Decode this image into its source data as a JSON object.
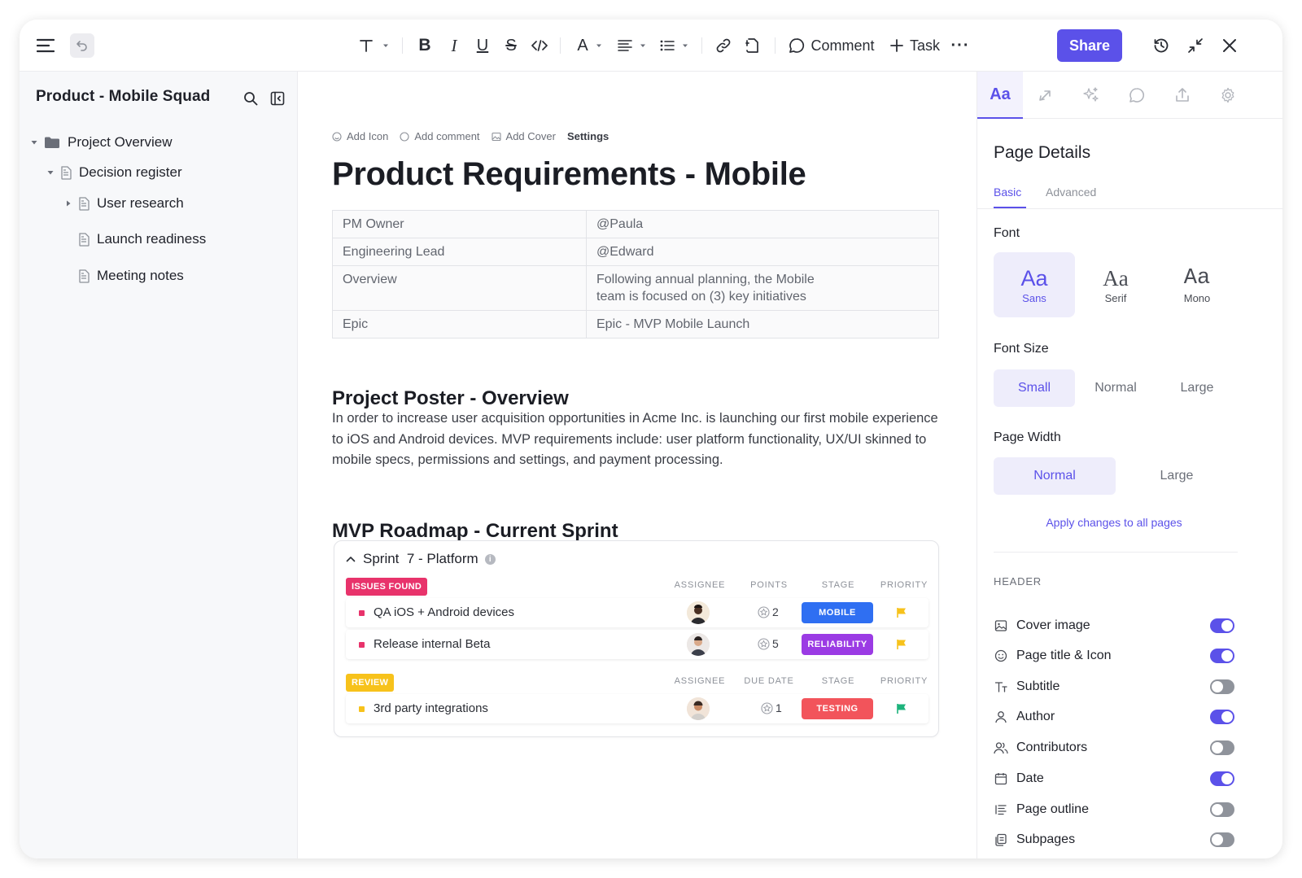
{
  "toolbar": {
    "comment_label": "Comment",
    "task_label": "Task",
    "share_label": "Share"
  },
  "sidebar": {
    "title": "Product - Mobile Squad",
    "tree": [
      {
        "label": "Project Overview",
        "level": 0,
        "expanded": true,
        "icon": "folder-icon"
      },
      {
        "label": "Decision register",
        "level": 1,
        "expanded": true,
        "icon": "doc-icon"
      },
      {
        "label": "User research",
        "level": 2,
        "expanded": false,
        "icon": "doc-icon"
      },
      {
        "label": "Launch readiness",
        "level": 2,
        "icon": "doc-icon"
      },
      {
        "label": "Meeting notes",
        "level": 2,
        "icon": "doc-icon"
      }
    ]
  },
  "main": {
    "meta": {
      "add_icon": "Add Icon",
      "add_comment": "Add comment",
      "add_cover": "Add Cover",
      "settings": "Settings"
    },
    "title": "Product Requirements - Mobile",
    "properties": [
      {
        "key": "PM Owner",
        "value": "@Paula"
      },
      {
        "key": "Engineering Lead",
        "value": "@Edward"
      },
      {
        "key": "Overview",
        "value": "Following annual planning, the Mobile",
        "value2": "team is focused on (3) key initiatives"
      },
      {
        "key": "Epic",
        "value": "Epic - MVP Mobile Launch"
      }
    ],
    "section1_title": "Project Poster - Overview",
    "section1_paragraph": "In order to increase user acquisition opportunities in Acme Inc. is launching our first mobile experience to iOS and Android devices. MVP requirements include: user platform functionality, UX/UI skinned to mobile specs, permissions and settings, and payment processing.",
    "section2_title": "MVP Roadmap - Current Sprint",
    "sprint": {
      "title": "Sprint  7 - Platform",
      "info": "i",
      "groups": [
        {
          "tag": "ISSUES FOUND",
          "tag_color": "#e8336b",
          "columns": [
            "ASSIGNEE",
            "POINTS",
            "STAGE",
            "PRIORITY"
          ],
          "tasks": [
            {
              "name": "QA iOS + Android devices",
              "points": "2",
              "stage": "MOBILE",
              "stage_color": "#2f6ff2",
              "priority_color": "#f7c21b"
            },
            {
              "name": "Release internal Beta",
              "points": "5",
              "stage": "RELIABILITY",
              "stage_color": "#9b3be4",
              "priority_color": "#f7c21b"
            }
          ]
        },
        {
          "tag": "REVIEW",
          "tag_color": "#f7c21b",
          "columns": [
            "ASSIGNEE",
            "DUE DATE",
            "STAGE",
            "PRIORITY"
          ],
          "tasks": [
            {
              "name": "3rd party integrations",
              "points": "1",
              "stage": "TESTING",
              "stage_color": "#f2545b",
              "priority_color": "#1db37c"
            }
          ]
        }
      ]
    }
  },
  "right_panel": {
    "active_tab": "Aa",
    "title": "Page Details",
    "subtabs": [
      "Basic",
      "Advanced"
    ],
    "font_label": "Font",
    "fonts": [
      {
        "aa": "Aa",
        "name": "Sans",
        "active": true
      },
      {
        "aa": "Aa",
        "name": "Serif",
        "active": false
      },
      {
        "aa": "Aa",
        "name": "Mono",
        "active": false
      }
    ],
    "font_size_label": "Font Size",
    "font_sizes": [
      "Small",
      "Normal",
      "Large"
    ],
    "page_width_label": "Page Width",
    "page_widths": [
      "Normal",
      "Large"
    ],
    "apply_label": "Apply changes to all pages",
    "header_label": "HEADER",
    "options": [
      {
        "label": "Cover image",
        "icon": "image-icon",
        "on": true
      },
      {
        "label": "Page title & Icon",
        "icon": "smiley-icon",
        "on": true
      },
      {
        "label": "Subtitle",
        "icon": "text-size-icon",
        "on": false
      },
      {
        "label": "Author",
        "icon": "user-icon",
        "on": true
      },
      {
        "label": "Contributors",
        "icon": "users-icon",
        "on": false
      },
      {
        "label": "Date",
        "icon": "calendar-icon",
        "on": true
      },
      {
        "label": "Page outline",
        "icon": "outline-icon",
        "on": false
      },
      {
        "label": "Subpages",
        "icon": "subpages-icon",
        "on": false
      }
    ]
  }
}
